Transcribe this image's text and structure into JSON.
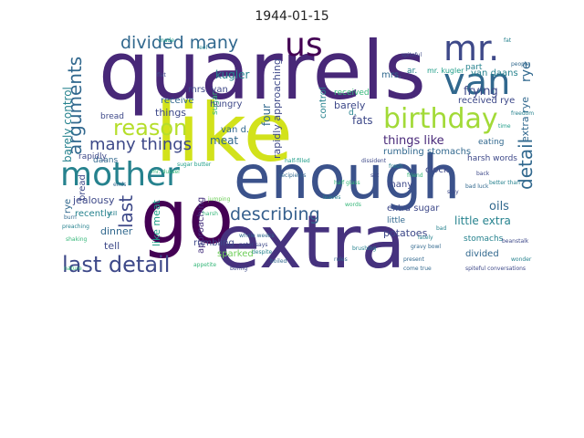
{
  "title": "1944-01-15",
  "words": {
    "quarrels": "quarrels",
    "like": "like",
    "enough": "enough",
    "go": "go",
    "extra": "extra",
    "mother": "mother",
    "us": "us",
    "mr": "mr.",
    "van": "van",
    "birthday": "birthday",
    "reason": "reason",
    "last_detail": "last detail",
    "divided_many": "divided many",
    "arguments": "arguments",
    "many_things": "many things",
    "describing": "describing",
    "last": "last",
    "things_like": "things like",
    "detail": "detail",
    "fats": "fats",
    "frying": "frying",
    "rye": "rye",
    "kugler": "kugler",
    "van_daans": "van daans",
    "barely_control": "barely control",
    "bread": "bread",
    "jealousy": "jealousy",
    "recently": "recently",
    "dinner": "dinner",
    "tell": "tell",
    "daans": "daans",
    "meat": "meat",
    "like_meat": "like meat",
    "rapidly": "rapidly",
    "rapidly_approaching": "rapidly approaching",
    "sparked": "sparked",
    "rumbling": "rumbling",
    "potatoes": "potatoes",
    "oils": "oils",
    "little_extra": "little extra",
    "extra_sugar": "extra sugar",
    "divided": "divided",
    "stomachs": "stomachs",
    "rumbling_stomachs": "rumbling stomachs",
    "harsh_words": "harsh words",
    "received_rye": "received rye",
    "eating": "eating",
    "clock": "clock",
    "many": "many",
    "part": "part",
    "receive": "receive",
    "hungry": "hungry",
    "four": "four",
    "sugar": "sugar",
    "things": "things",
    "mrs_van": "mrs. van",
    "van_d": "van d.",
    "barely": "barely",
    "control": "control",
    "approaching": "approaching",
    "little": "little",
    "d": "d.",
    "mrs": "mrs.",
    "ar": "ar.",
    "mr_kugler": "mr. kugler",
    "extra_rye": "extra rye",
    "received": "received",
    "jumping": "jumping",
    "harsh": "harsh",
    "leaves": "leaves",
    "half_filled": "half-filled",
    "recipients": "recipients",
    "shaking": "shaking",
    "brushing": "brushing",
    "spiteful": "spiteful",
    "peter_says": "peter says",
    "whole_weeks": "whole weeks",
    "gravy_bowl": "gravy bowl",
    "fresh": "fresh",
    "time": "time",
    "freedom": "freedom",
    "people": "people",
    "beanstalk": "beanstalk",
    "wonder": "wonder",
    "appetite": "appetite",
    "bad_luck": "bad luck",
    "spiteful_conversations": "spiteful conversations",
    "made": "made",
    "feel": "feel",
    "flat": "flat",
    "mr_dussel": "mr. dussel",
    "boiled": "boiled",
    "lately": "lately",
    "half_glass": "half glass",
    "back": "back",
    "bad": "bad",
    "rules": "rules",
    "sugar_butter": "sugar butter",
    "fat": "fat",
    "nature": "nature",
    "come_true": "come true",
    "dissident": "dissident",
    "better_than": "better than",
    "boring": "boring",
    "ends": "ends",
    "preaching": "preaching",
    "burn": "burn",
    "words": "words",
    "despite": "despite",
    "stay": "stay",
    "friend": "friend",
    "present": "present",
    "still": "still",
    "set": "set"
  },
  "colors": {
    "deep_purple": "#440154",
    "purple": "#482878",
    "indigo": "#3e4989",
    "blue": "#31688e",
    "teal_blue": "#26828e",
    "teal": "#1f9e89",
    "green": "#35b779",
    "light_green": "#6ece58",
    "lime": "#b5de2b",
    "yellow": "#fde725"
  }
}
